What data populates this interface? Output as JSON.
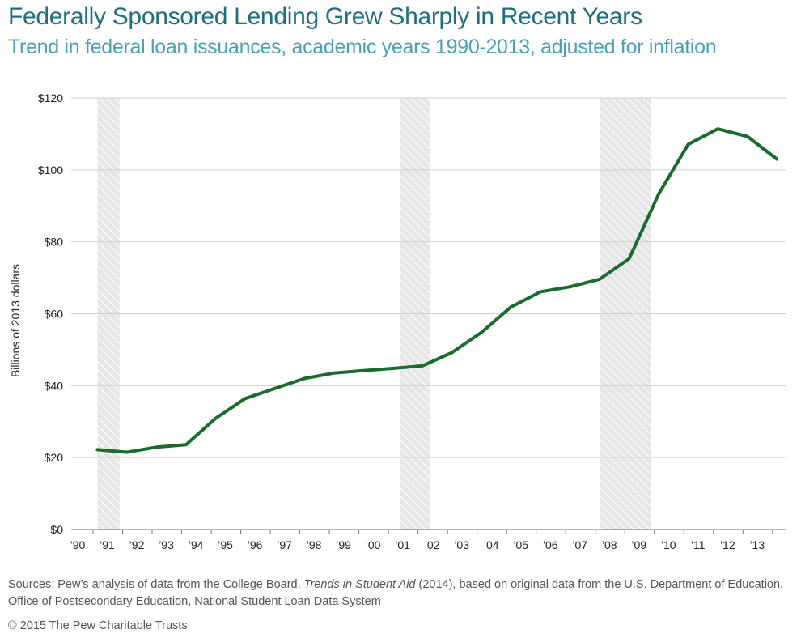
{
  "title": "Federally Sponsored Lending Grew Sharply in Recent Years",
  "subtitle": "Trend in federal loan issuances, academic years 1990-2013, adjusted for inflation",
  "notes": {
    "sources_prefix": "Sources: Pew’s analysis of data from the College Board, ",
    "sources_italic": "Trends in Student Aid",
    "sources_suffix": " (2014), based on original data from the U.S. Department of Education, Office of Postsecondary Education, National Student Loan Data System",
    "credit": "© 2015 The Pew Charitable Trusts"
  },
  "colors": {
    "line": "#1a6b2e",
    "grid": "#cfcfcf",
    "shade": "#d9d9d9"
  },
  "chart_data": {
    "type": "line",
    "title": "Federally Sponsored Lending Grew Sharply in Recent Years",
    "subtitle": "Trend in federal loan issuances, academic years 1990-2013, adjusted for inflation",
    "xlabel": "",
    "ylabel": "Billions of 2013 dollars",
    "x_tick_labels": [
      "’90",
      "’91",
      "’92",
      "’93",
      "’94",
      "’95",
      "’96",
      "’97",
      "’98",
      "’99",
      "’00",
      "’01",
      "’02",
      "’03",
      "’04",
      "’05",
      "’06",
      "’07",
      "’08",
      "’09",
      "’10",
      "’11",
      "’12",
      "’13"
    ],
    "y_tick_labels": [
      "$0",
      "$20",
      "$40",
      "$60",
      "$80",
      "$100",
      "$120"
    ],
    "ylim": [
      0,
      120
    ],
    "xlim": [
      1990,
      2013.8
    ],
    "grid": true,
    "series": [
      {
        "name": "Federal loan issuances",
        "x": [
          1990.75,
          1991.75,
          1992.75,
          1993.75,
          1994.75,
          1995.75,
          1996.75,
          1997.75,
          1998.75,
          1999.75,
          2000.75,
          2001.75,
          2002.75,
          2003.75,
          2004.75,
          2005.75,
          2006.75,
          2007.75,
          2008.75,
          2009.75,
          2010.75,
          2011.75,
          2012.75,
          2013.75
        ],
        "values": [
          22.2,
          21.5,
          22.9,
          23.6,
          30.9,
          36.4,
          39.2,
          42.0,
          43.5,
          44.2,
          44.8,
          45.5,
          49.2,
          54.8,
          61.9,
          66.1,
          67.5,
          69.6,
          75.3,
          93.3,
          107.1,
          111.4,
          109.3,
          103.0
        ]
      }
    ],
    "recession_shading": [
      {
        "start": 1990.75,
        "end": 1991.5
      },
      {
        "start": 2001.0,
        "end": 2002.0
      },
      {
        "start": 2007.75,
        "end": 2009.5
      }
    ]
  }
}
